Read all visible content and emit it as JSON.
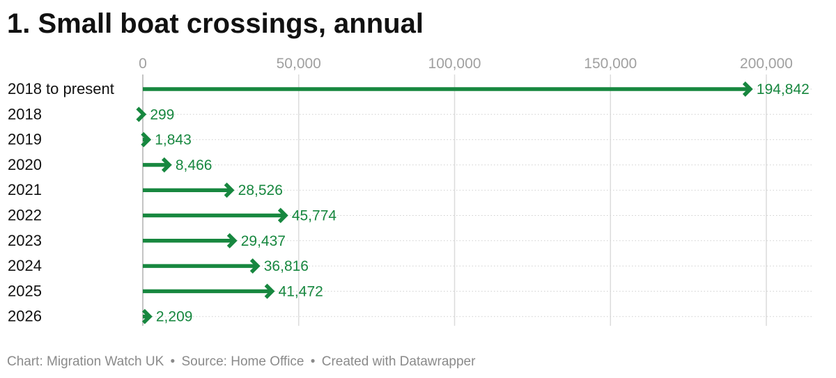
{
  "title": "1. Small boat crossings, annual",
  "footer": {
    "chart_credit": "Chart: Migration Watch UK",
    "source": "Source: Home Office",
    "created_with": "Created with Datawrapper",
    "separator": "•"
  },
  "colors": {
    "bar": "#17873f",
    "label": "#17873f",
    "tick_label": "#a0a0a0",
    "grid": "#dcdcdc",
    "category_label": "#111111"
  },
  "chart_data": {
    "type": "bar",
    "orientation": "horizontal",
    "mark": "arrow",
    "title": "1. Small boat crossings, annual",
    "xlabel": "",
    "ylabel": "",
    "categories": [
      "2018 to present",
      "2018",
      "2019",
      "2020",
      "2021",
      "2022",
      "2023",
      "2024",
      "2025",
      "2026"
    ],
    "values": [
      194842,
      299,
      1843,
      8466,
      28526,
      45774,
      29437,
      36816,
      41472,
      2209
    ],
    "value_labels": [
      "194,842",
      "299",
      "1,843",
      "8,466",
      "28,526",
      "45,774",
      "29,437",
      "36,816",
      "41,472",
      "2,209"
    ],
    "xlim": [
      0,
      200000
    ],
    "x_ticks": [
      0,
      50000,
      100000,
      150000,
      200000
    ],
    "x_tick_labels": [
      "0",
      "50,000",
      "100,000",
      "150,000",
      "200,000"
    ],
    "x_axis_position": "top",
    "grid": true,
    "legend": "none"
  }
}
